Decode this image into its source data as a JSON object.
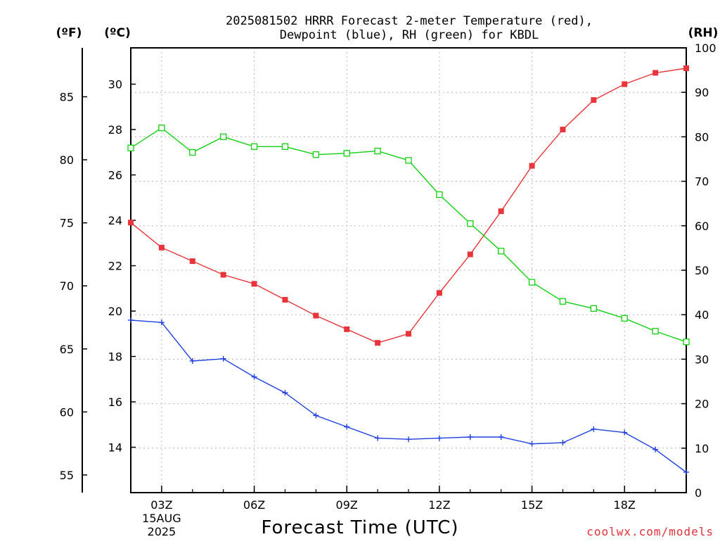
{
  "chart_data": {
    "type": "line",
    "title_line1": "2025081502 HRRR Forecast 2-meter Temperature (red),",
    "title_line2": "Dewpoint (blue), RH (green) for KBDL",
    "xlabel": "Forecast Time (UTC)",
    "watermark": "coolwx.com/models",
    "left_f_unit": "(ºF)",
    "left_c_unit": "(ºC)",
    "right_unit": "(RH)",
    "x_hours": [
      2,
      3,
      4,
      5,
      6,
      7,
      8,
      9,
      10,
      11,
      12,
      13,
      14,
      15,
      16,
      17,
      18,
      19,
      20
    ],
    "xlim": [
      2,
      20
    ],
    "x_ticks": [
      {
        "hour": 3,
        "label": "03Z",
        "sub1": "15AUG",
        "sub2": "2025"
      },
      {
        "hour": 6,
        "label": "06Z",
        "sub1": "",
        "sub2": ""
      },
      {
        "hour": 9,
        "label": "09Z",
        "sub1": "",
        "sub2": ""
      },
      {
        "hour": 12,
        "label": "12Z",
        "sub1": "",
        "sub2": ""
      },
      {
        "hour": 15,
        "label": "15Z",
        "sub1": "",
        "sub2": ""
      },
      {
        "hour": 18,
        "label": "18Z",
        "sub1": "",
        "sub2": ""
      }
    ],
    "ylim_c": [
      12.0,
      31.6
    ],
    "c_ticks": [
      "14",
      "16",
      "18",
      "20",
      "22",
      "24",
      "26",
      "28",
      "30"
    ],
    "f_ticks": [
      "55",
      "60",
      "65",
      "70",
      "75",
      "80",
      "85"
    ],
    "ylim_rh": [
      0,
      100
    ],
    "rh_ticks": [
      "0",
      "10",
      "20",
      "30",
      "40",
      "50",
      "60",
      "70",
      "80",
      "90",
      "100"
    ],
    "colors": {
      "temperature": "#e8343a",
      "dewpoint": "#2040e0",
      "rh": "#10d010"
    },
    "series": [
      {
        "key": "temperature",
        "axis": "c",
        "marker": "square-filled",
        "values": [
          23.9,
          22.8,
          22.2,
          21.6,
          21.2,
          20.5,
          19.8,
          19.2,
          18.6,
          19.0,
          20.8,
          22.5,
          24.4,
          26.4,
          28.0,
          29.3,
          30.0,
          30.5,
          30.7
        ]
      },
      {
        "key": "dewpoint",
        "axis": "c",
        "marker": "plus",
        "values": [
          19.6,
          19.5,
          17.8,
          17.9,
          17.1,
          16.4,
          15.4,
          14.9,
          14.4,
          14.35,
          14.4,
          14.45,
          14.45,
          14.15,
          14.2,
          14.8,
          14.65,
          13.9,
          12.9
        ]
      },
      {
        "key": "rh",
        "axis": "rh",
        "marker": "square-open",
        "values": [
          77.5,
          82,
          76.5,
          80,
          77.8,
          77.8,
          76,
          76.3,
          76.8,
          74.7,
          67,
          60.5,
          54.3,
          47.3,
          43,
          41.4,
          39.2,
          36.3,
          33.9
        ]
      }
    ]
  }
}
